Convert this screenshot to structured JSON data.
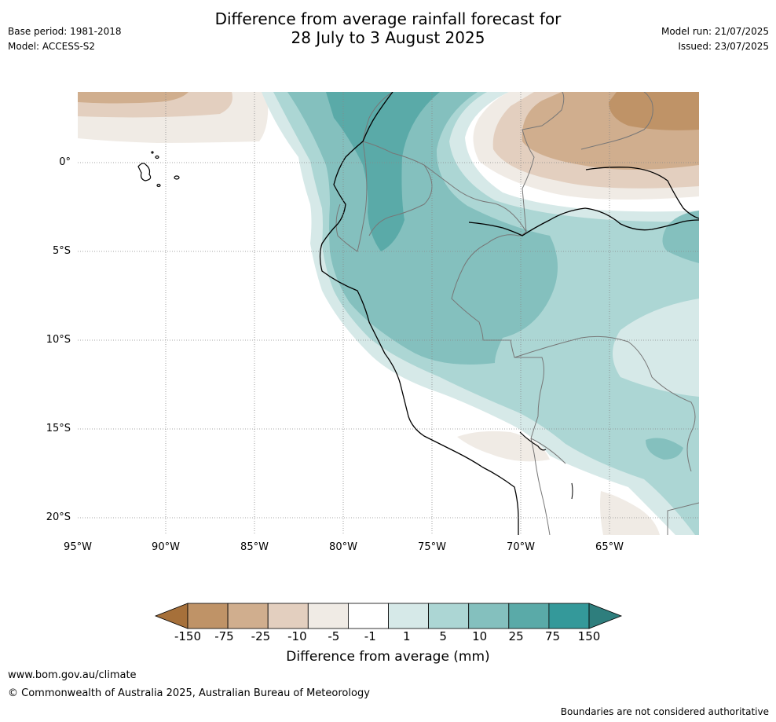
{
  "header": {
    "title_line1": "Difference from average rainfall forecast for",
    "title_line2": "28 July to 3 August 2025",
    "base_period": "Base period: 1981-2018",
    "model": "Model: ACCESS-S2",
    "model_run": "Model run: 21/07/2025",
    "issued": "Issued: 23/07/2025"
  },
  "map": {
    "lat_labels": [
      "0°",
      "5°S",
      "10°S",
      "15°S",
      "20°S"
    ],
    "lon_labels": [
      "95°W",
      "90°W",
      "85°W",
      "80°W",
      "75°W",
      "70°W",
      "65°W"
    ]
  },
  "legend": {
    "title": "Difference from average (mm)",
    "ticks": [
      "-150",
      "-75",
      "-25",
      "-10",
      "-5",
      "-1",
      "1",
      "5",
      "10",
      "25",
      "75",
      "150"
    ],
    "colors": [
      "#a6703a",
      "#bf9367",
      "#d0ae8e",
      "#e3cfbf",
      "#f0ebe5",
      "#ffffff",
      "#d6e9e8",
      "#acd6d4",
      "#84c0be",
      "#5aaaa8",
      "#34999a",
      "#2e7e7d"
    ]
  },
  "footer": {
    "website": "www.bom.gov.au/climate",
    "copyright": "© Commonwealth of Australia 2025, Australian Bureau of Meteorology",
    "disclaimer": "Boundaries are not considered authoritative"
  }
}
